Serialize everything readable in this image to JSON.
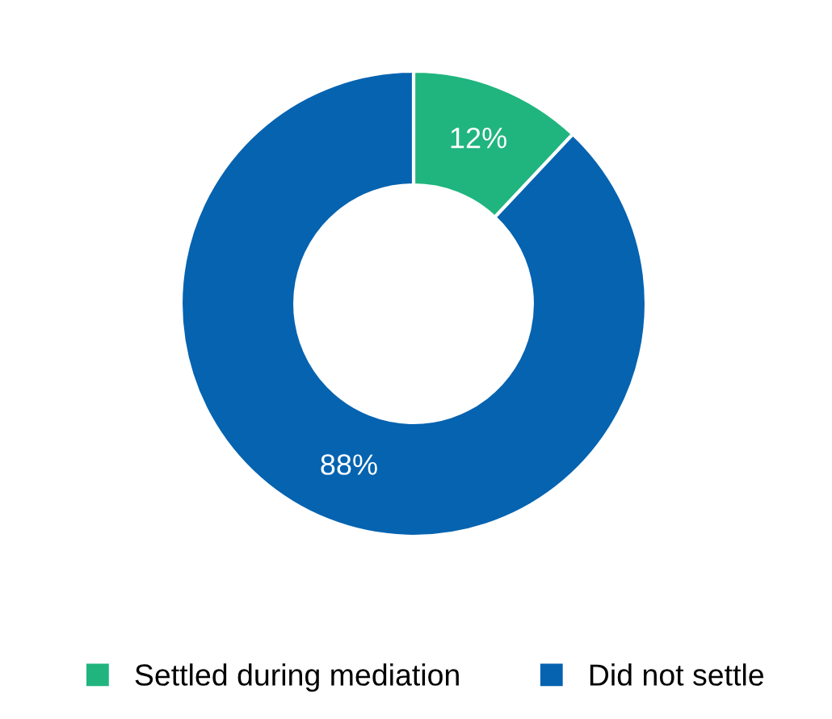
{
  "chart_data": {
    "type": "donut",
    "categories": [
      "Settled during mediation",
      "Did not settle"
    ],
    "values": [
      12,
      88
    ],
    "colors": [
      "#20b57e",
      "#0563b0"
    ],
    "value_labels": [
      "12%",
      "88%"
    ],
    "legend": "bottom"
  }
}
